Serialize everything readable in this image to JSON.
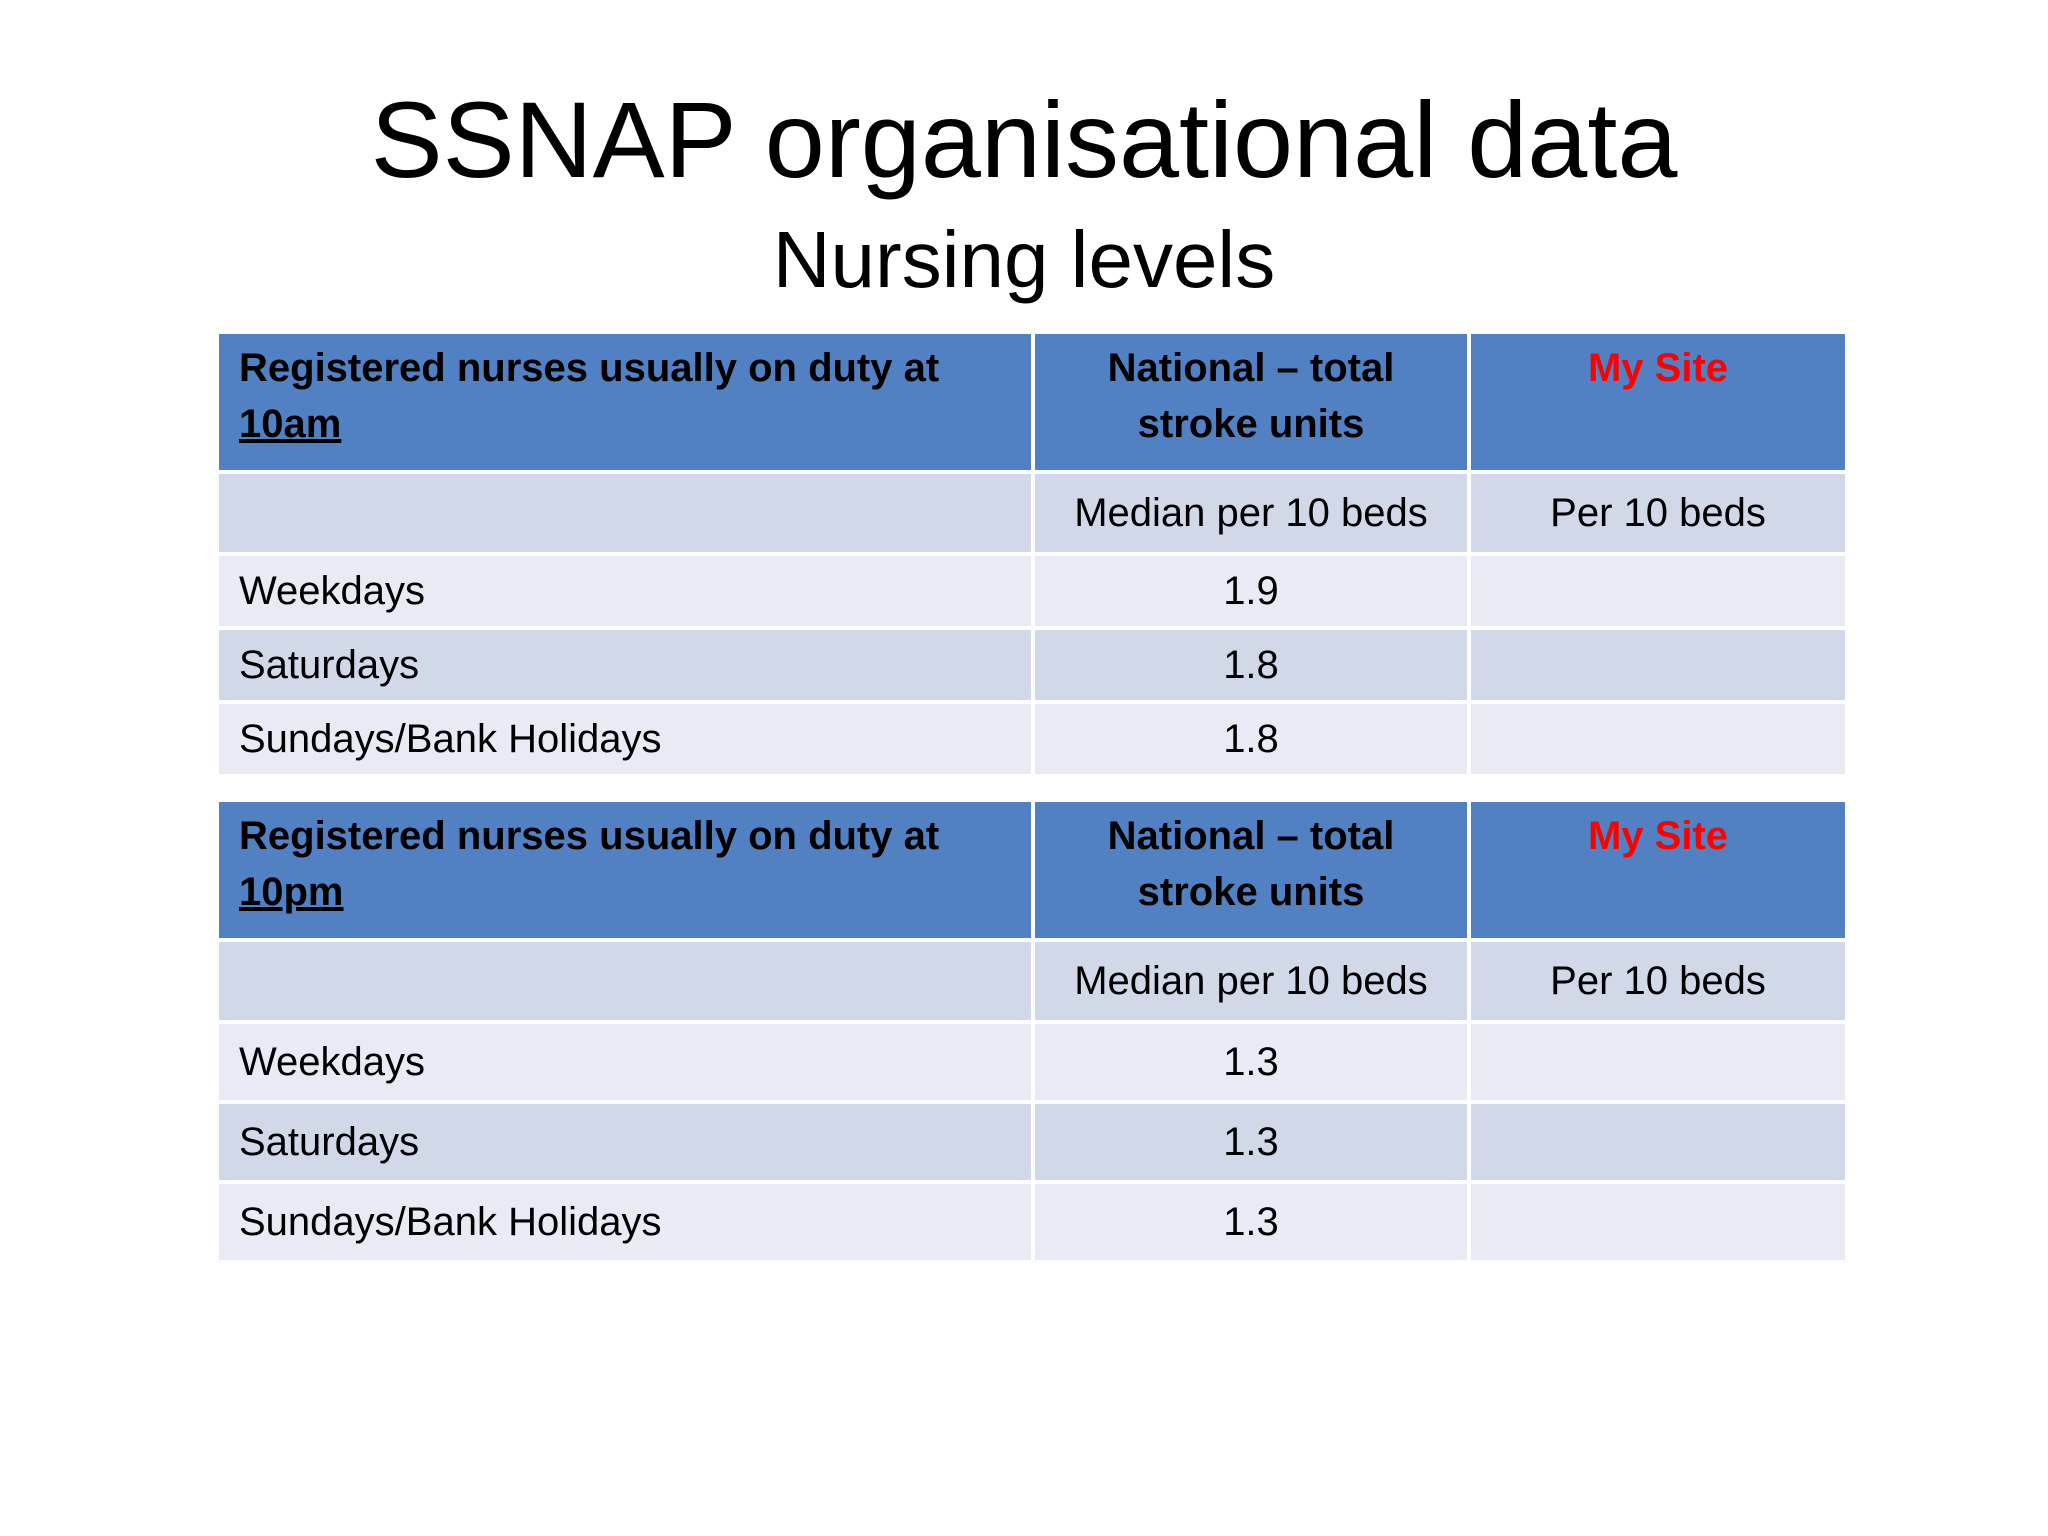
{
  "slide": {
    "title": "SSNAP organisational data",
    "subtitle": "Nursing levels"
  },
  "colors": {
    "header_fill": "#5181c2",
    "row_dark": "#d1d9e9",
    "row_light": "#e9ebf4",
    "my_site_text": "#ff0000"
  },
  "tables": [
    {
      "header": {
        "label_prefix": "Registered nurses usually on duty at",
        "label_time": "10am",
        "national": "National – total stroke units",
        "my_site": "My Site"
      },
      "units": {
        "label": "",
        "national": "Median per 10 beds",
        "my_site": "Per 10 beds"
      },
      "rows": [
        {
          "label": "Weekdays",
          "national": "1.9",
          "my_site": ""
        },
        {
          "label": "Saturdays",
          "national": "1.8",
          "my_site": ""
        },
        {
          "label": "Sundays/Bank Holidays",
          "national": "1.8",
          "my_site": ""
        }
      ]
    },
    {
      "header": {
        "label_prefix": "Registered nurses usually on duty at",
        "label_time": "10pm",
        "national": "National – total stroke units",
        "my_site": "My Site"
      },
      "units": {
        "label": "",
        "national": "Median per 10 beds",
        "my_site": "Per 10 beds"
      },
      "rows": [
        {
          "label": "Weekdays",
          "national": "1.3",
          "my_site": ""
        },
        {
          "label": "Saturdays",
          "national": "1.3",
          "my_site": ""
        },
        {
          "label": "Sundays/Bank Holidays",
          "national": "1.3",
          "my_site": ""
        }
      ]
    }
  ]
}
